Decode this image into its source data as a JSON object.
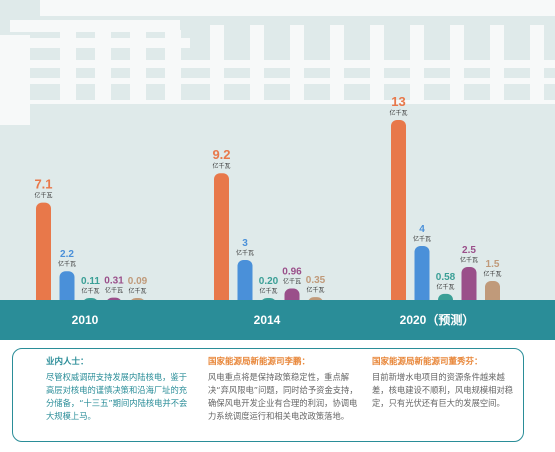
{
  "colors": {
    "nuclear": "#e8784a",
    "wind": "#4a90d9",
    "solar": "#3a9f96",
    "hydro": "#9a4f8a",
    "biomass": "#c09a7a",
    "band": "#2a8d98",
    "bg": "#dfeaea"
  },
  "chart_data": {
    "type": "bar",
    "categories": [
      "2010",
      "2014",
      "2020（预测）"
    ],
    "series": [
      {
        "values": [
          7.1,
          9.2,
          13
        ]
      },
      {
        "values": [
          2.2,
          3,
          4
        ]
      },
      {
        "values": [
          0.11,
          0.2,
          0.58
        ]
      },
      {
        "values": [
          0.31,
          0.96,
          2.5
        ]
      },
      {
        "values": [
          0.09,
          0.35,
          1.5
        ]
      }
    ],
    "value_labels": [
      [
        "7.1",
        "2.2",
        "0.11",
        "0.31",
        "0.09"
      ],
      [
        "9.2",
        "3",
        "0.20",
        "0.96",
        "0.35"
      ],
      [
        "13",
        "4",
        "0.58",
        "2.5",
        "1.5"
      ]
    ],
    "unit": "亿千瓦",
    "title": "",
    "xlabel": "",
    "ylabel": ""
  },
  "quotes": [
    {
      "speaker": "业内人士：",
      "text": "尽管权威调研支持发展内陆核电，鉴于高层对核电的谨慎决策和沿海厂址的充分储备，“十三五”期间内陆核电并不会大规模上马。"
    },
    {
      "speaker": "国家能源局新能源司李鹏：",
      "text": "风电重点将是保持政策稳定性，重点解决“弃风限电”问题，同时给予资金支持，确保风电开发企业有合理的利润，协调电力系统调度运行和相关电改政策落地。"
    },
    {
      "speaker": "国家能源局新能源司董秀芬：",
      "text": "目前新增水电项目的资源条件越来越差，核电建设不顺利，风电规模相对稳定，只有光伏还有巨大的发展空间。"
    }
  ]
}
